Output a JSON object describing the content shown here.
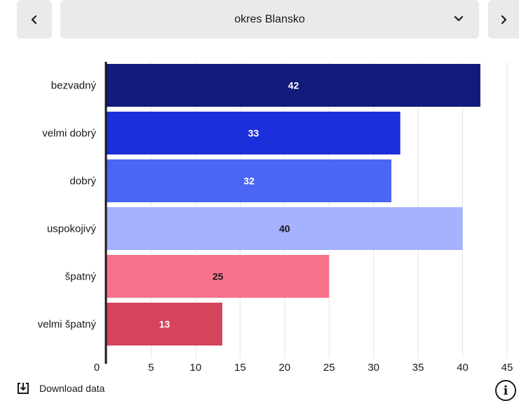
{
  "header": {
    "prev_icon": "chevron-left-icon",
    "next_icon": "chevron-right-icon",
    "select_value": "okres Blansko",
    "select_icon": "chevron-down-icon"
  },
  "footer": {
    "download_label": "Download data",
    "download_icon": "download-icon",
    "info_icon": "info-icon"
  },
  "chart_data": {
    "type": "bar",
    "orientation": "horizontal",
    "categories": [
      "bezvadný",
      "velmi dobrý",
      "dobrý",
      "uspokojivý",
      "špatný",
      "velmi špatný"
    ],
    "values": [
      42,
      33,
      32,
      40,
      25,
      13
    ],
    "colors": [
      "#111b7a",
      "#1d2fdb",
      "#4b66f5",
      "#a6b1ff",
      "#f9728b",
      "#d6435d"
    ],
    "label_colors": [
      "#ffffff",
      "#ffffff",
      "#ffffff",
      "#1a1a1a",
      "#1a1a1a",
      "#ffffff"
    ],
    "xlim": [
      0,
      45
    ],
    "xticks": [
      0,
      5,
      10,
      15,
      20,
      25,
      30,
      35,
      40,
      45
    ],
    "grid": true
  }
}
